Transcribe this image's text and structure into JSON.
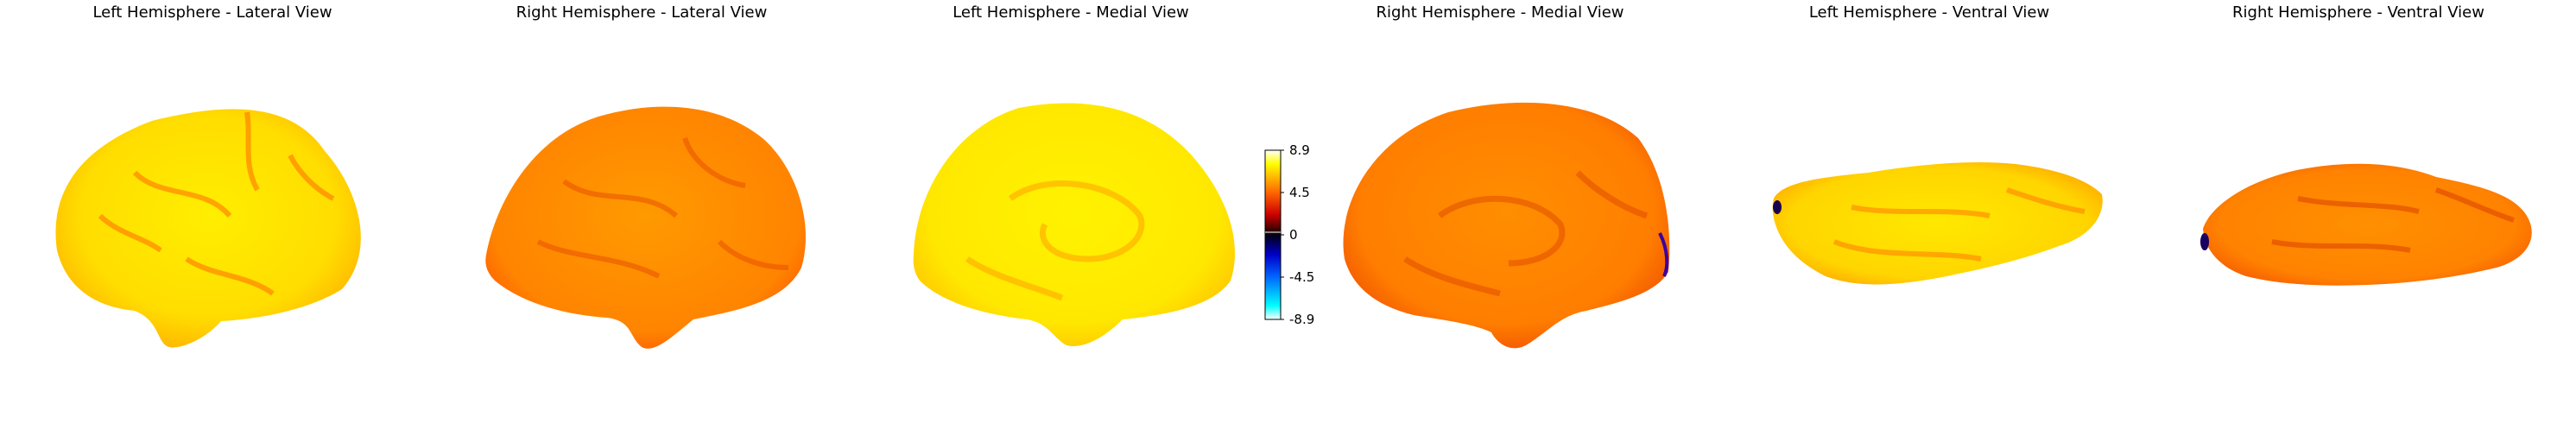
{
  "figure": {
    "panels": [
      {
        "id": "lh-lateral",
        "title": "Left Hemisphere - Lateral View",
        "hemisphere": "left",
        "view": "lateral",
        "dominant_color": "#ffe600"
      },
      {
        "id": "rh-lateral",
        "title": "Right Hemisphere - Lateral View",
        "hemisphere": "right",
        "view": "lateral",
        "dominant_color": "#ff9900"
      },
      {
        "id": "lh-medial",
        "title": "Left Hemisphere - Medial View",
        "hemisphere": "left",
        "view": "medial",
        "dominant_color": "#ffee10"
      },
      {
        "id": "rh-medial",
        "title": "Right Hemisphere - Medial View",
        "hemisphere": "right",
        "view": "medial",
        "dominant_color": "#ff8a00"
      },
      {
        "id": "lh-ventral",
        "title": "Left Hemisphere - Ventral View",
        "hemisphere": "left",
        "view": "ventral",
        "dominant_color": "#ffe000"
      },
      {
        "id": "rh-ventral",
        "title": "Right Hemisphere - Ventral View",
        "hemisphere": "right",
        "view": "ventral",
        "dominant_color": "#ff9500"
      }
    ],
    "colorbar": {
      "ticks": [
        "8.9",
        "4.5",
        "0",
        "-4.5",
        "-8.9"
      ],
      "range": [
        -8.9,
        8.9
      ],
      "colormap": [
        "#ffffff",
        "#ffff00",
        "#ff6600",
        "#cc0000",
        "#220000",
        "#000022",
        "#0000cc",
        "#0066ff",
        "#00ffff",
        "#ffffff"
      ]
    }
  }
}
